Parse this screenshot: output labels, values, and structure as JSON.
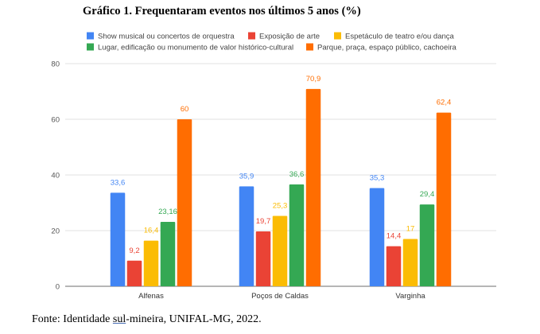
{
  "page": {
    "title": "Gráfico 1. Frequentaram eventos nos últimos 5 anos (%)",
    "source_prefix": "Fonte: Identidade ",
    "source_underlined": "sul",
    "source_suffix": "-mineira, UNIFAL-MG, 2022."
  },
  "chart_data": {
    "type": "bar",
    "title": "Gráfico 1. Frequentaram eventos nos últimos 5 anos (%)",
    "xlabel": "",
    "ylabel": "",
    "ylim": [
      0,
      80
    ],
    "yticks": [
      0,
      20,
      40,
      60,
      80
    ],
    "grid": true,
    "legend_position": "top",
    "categories": [
      "Alfenas",
      "Poços de Caldas",
      "Varginha"
    ],
    "series": [
      {
        "name": "Show musical ou concertos de orquestra",
        "color": "#4285f4",
        "values": [
          33.6,
          35.9,
          35.3
        ],
        "labels": [
          "33,6",
          "35,9",
          "35,3"
        ]
      },
      {
        "name": "Exposição de arte",
        "color": "#ea4335",
        "values": [
          9.2,
          19.7,
          14.4
        ],
        "labels": [
          "9,2",
          "19,7",
          "14,4"
        ]
      },
      {
        "name": "Espetáculo de teatro e/ou dança",
        "color": "#fbbc04",
        "values": [
          16.4,
          25.3,
          17
        ],
        "labels": [
          "16,4",
          "25,3",
          "17"
        ]
      },
      {
        "name": "Lugar, edificação ou monumento de valor histórico-cultural",
        "color": "#34a853",
        "values": [
          23.16,
          36.6,
          29.4
        ],
        "labels": [
          "23,16",
          "36,6",
          "29,4"
        ]
      },
      {
        "name": "Parque, praça, espaço público, cachoeira",
        "color": "#ff6d01",
        "values": [
          60,
          70.9,
          62.4
        ],
        "labels": [
          "60",
          "70,9",
          "62,4"
        ]
      }
    ]
  }
}
